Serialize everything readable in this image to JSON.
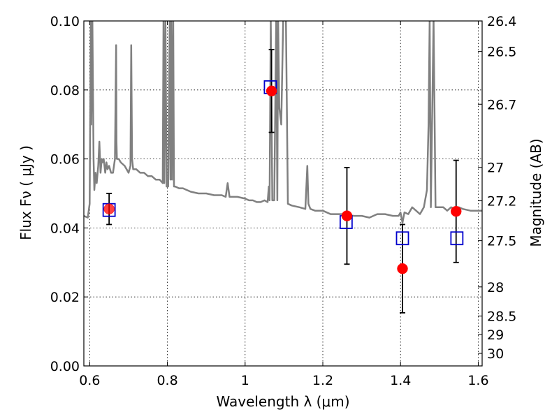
{
  "chart_data": {
    "type": "scatter",
    "xlabel": "Wavelength  λ (μm)",
    "ylabel": "Flux  Fν  ( μJy )",
    "y2label": "Magnitude (AB)",
    "xlim": [
      0.585,
      1.61
    ],
    "ylim": [
      0.0,
      0.1
    ],
    "grid": true,
    "x_ticks": [
      0.6,
      0.8,
      1.0,
      1.2,
      1.4,
      1.6
    ],
    "x_tick_labels": [
      "0.6",
      "0.8",
      "1",
      "1.2",
      "1.4",
      "1.6"
    ],
    "y_ticks": [
      0.0,
      0.02,
      0.04,
      0.06,
      0.08,
      0.1
    ],
    "y_tick_labels": [
      "0.00",
      "0.02",
      "0.04",
      "0.06",
      "0.08",
      "0.10"
    ],
    "y2_ticks": [
      {
        "value": 26.4,
        "label": "26.4"
      },
      {
        "value": 26.5,
        "label": "26.5"
      },
      {
        "value": 26.7,
        "label": "26.7"
      },
      {
        "value": 27.0,
        "label": "27"
      },
      {
        "value": 27.2,
        "label": "27.2"
      },
      {
        "value": 27.5,
        "label": "27.5"
      },
      {
        "value": 28.0,
        "label": "28"
      },
      {
        "value": 28.5,
        "label": "28.5"
      },
      {
        "value": 29.0,
        "label": "29"
      },
      {
        "value": 30.0,
        "label": "30"
      }
    ],
    "series": [
      {
        "kind": "line",
        "color": "#808080",
        "x": [
          0.585,
          0.595,
          0.6,
          0.603,
          0.604,
          0.607,
          0.61,
          0.612,
          0.615,
          0.618,
          0.622,
          0.625,
          0.628,
          0.631,
          0.633,
          0.636,
          0.64,
          0.643,
          0.646,
          0.65,
          0.655,
          0.66,
          0.665,
          0.668,
          0.669,
          0.67,
          0.675,
          0.68,
          0.69,
          0.7,
          0.705,
          0.707,
          0.709,
          0.712,
          0.72,
          0.73,
          0.74,
          0.75,
          0.76,
          0.77,
          0.78,
          0.788,
          0.79,
          0.792,
          0.795,
          0.798,
          0.802,
          0.806,
          0.808,
          0.81,
          0.812,
          0.815,
          0.817,
          0.82,
          0.83,
          0.84,
          0.85,
          0.86,
          0.88,
          0.9,
          0.92,
          0.94,
          0.95,
          0.955,
          0.96,
          0.98,
          1.0,
          1.01,
          1.02,
          1.03,
          1.04,
          1.05,
          1.058,
          1.061,
          1.063,
          1.066,
          1.07,
          1.075,
          1.08,
          1.083,
          1.085,
          1.088,
          1.093,
          1.098,
          1.105,
          1.11,
          1.12,
          1.14,
          1.155,
          1.16,
          1.163,
          1.168,
          1.18,
          1.2,
          1.22,
          1.25,
          1.28,
          1.3,
          1.32,
          1.34,
          1.36,
          1.38,
          1.395,
          1.4,
          1.405,
          1.41,
          1.42,
          1.43,
          1.44,
          1.45,
          1.46,
          1.468,
          1.472,
          1.475,
          1.478,
          1.485,
          1.49,
          1.5,
          1.51,
          1.52,
          1.53,
          1.54,
          1.55,
          1.56,
          1.58,
          1.6,
          1.61
        ],
        "y": [
          0.0435,
          0.043,
          0.047,
          0.105,
          0.07,
          0.105,
          0.06,
          0.051,
          0.056,
          0.053,
          0.058,
          0.065,
          0.056,
          0.06,
          0.059,
          0.06,
          0.056,
          0.059,
          0.057,
          0.058,
          0.056,
          0.056,
          0.06,
          0.093,
          0.065,
          0.06,
          0.06,
          0.059,
          0.058,
          0.056,
          0.058,
          0.093,
          0.06,
          0.057,
          0.057,
          0.056,
          0.056,
          0.055,
          0.055,
          0.054,
          0.054,
          0.053,
          0.105,
          0.053,
          0.105,
          0.052,
          0.052,
          0.105,
          0.054,
          0.105,
          0.054,
          0.105,
          0.052,
          0.052,
          0.0515,
          0.0515,
          0.051,
          0.0505,
          0.05,
          0.05,
          0.0495,
          0.0495,
          0.049,
          0.053,
          0.049,
          0.049,
          0.0485,
          0.048,
          0.048,
          0.0475,
          0.0475,
          0.048,
          0.0475,
          0.052,
          0.048,
          0.105,
          0.048,
          0.048,
          0.105,
          0.048,
          0.105,
          0.075,
          0.07,
          0.105,
          0.105,
          0.047,
          0.0465,
          0.046,
          0.0455,
          0.058,
          0.047,
          0.0455,
          0.045,
          0.045,
          0.044,
          0.044,
          0.0435,
          0.0435,
          0.043,
          0.044,
          0.044,
          0.0435,
          0.0435,
          0.0445,
          0.0415,
          0.0445,
          0.044,
          0.046,
          0.045,
          0.044,
          0.046,
          0.051,
          0.07,
          0.105,
          0.046,
          0.105,
          0.046,
          0.046,
          0.046,
          0.045,
          0.046,
          0.0455,
          0.046,
          0.0455,
          0.045,
          0.045,
          0.045
        ]
      },
      {
        "kind": "open-square",
        "color": "#0000cc",
        "x": [
          0.65,
          1.065,
          1.26,
          1.405,
          1.545
        ],
        "y": [
          0.0452,
          0.0808,
          0.0417,
          0.037,
          0.037
        ]
      },
      {
        "kind": "filled-circle",
        "color": "#ff0000",
        "x": [
          0.65,
          1.068,
          1.262,
          1.405,
          1.543
        ],
        "y": [
          0.0455,
          0.0797,
          0.0435,
          0.0282,
          0.0448
        ],
        "yerr": [
          0.0045,
          0.012,
          0.014,
          0.0128,
          0.0148
        ]
      }
    ]
  }
}
